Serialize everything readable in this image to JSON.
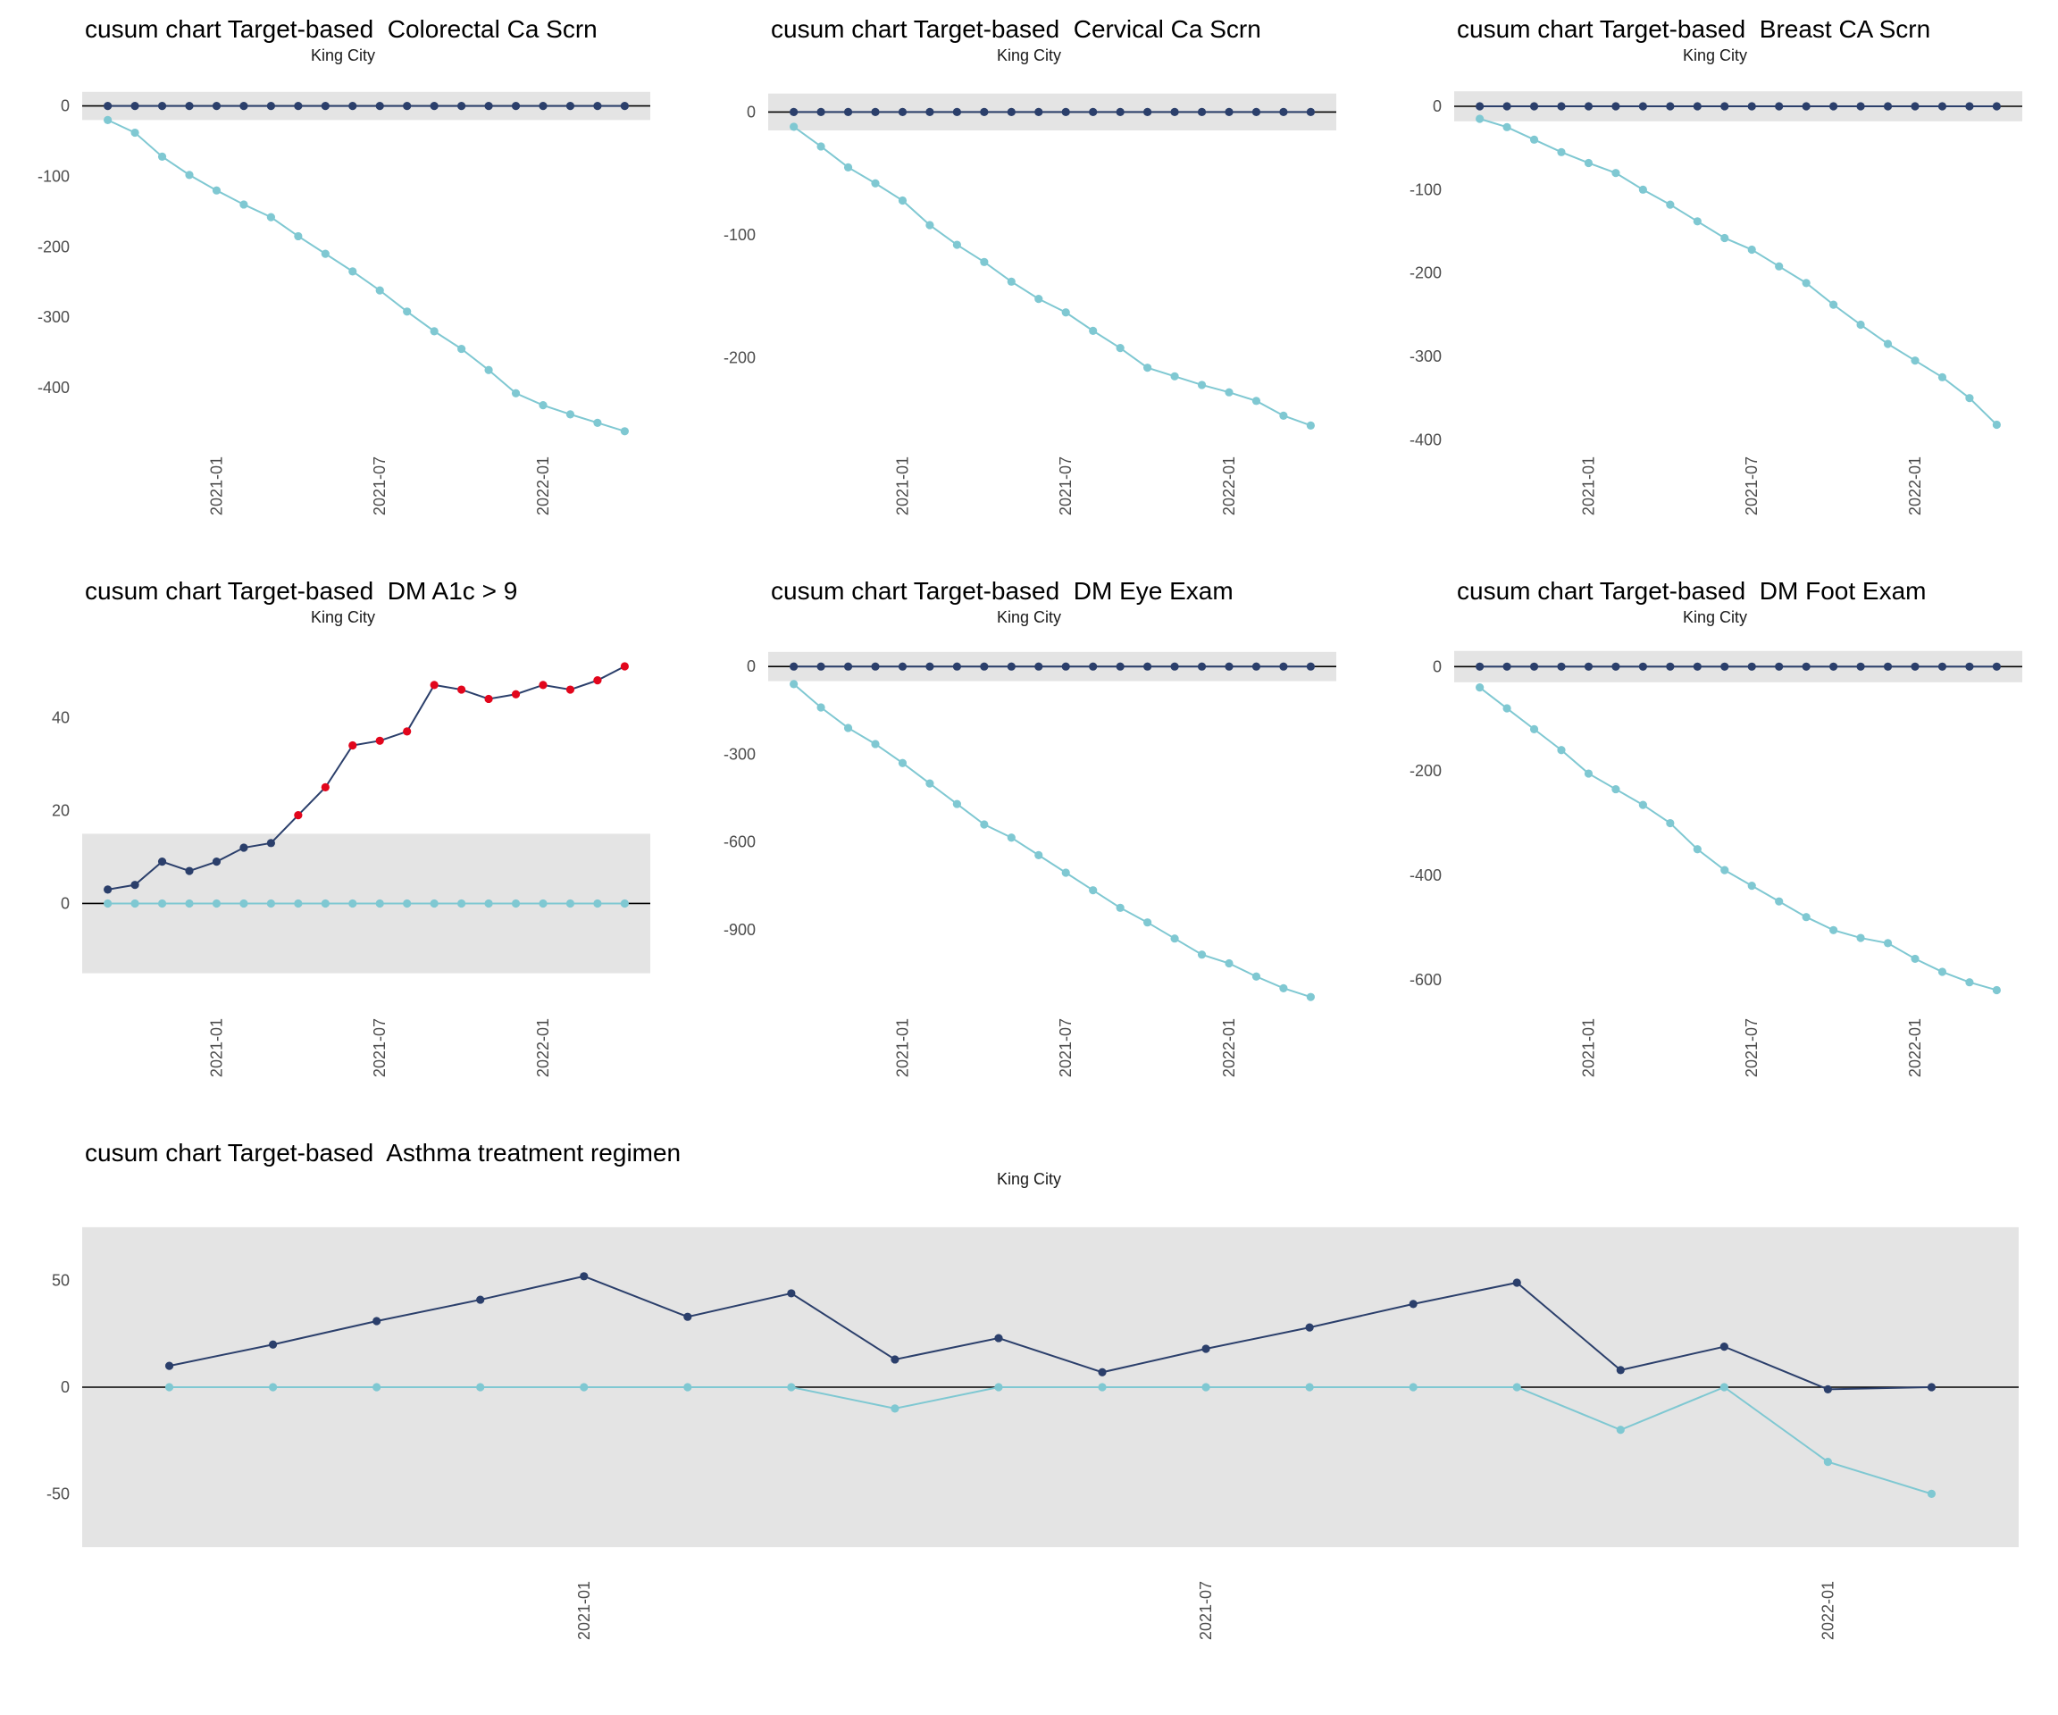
{
  "colors": {
    "upper_series": "#2b3f6b",
    "lower_series": "#7fc8d2",
    "alert": "#e2061c",
    "band": "#e4e4e4",
    "baseline": "#000000",
    "tick_label": "#4d4d4d"
  },
  "chart_data": [
    {
      "type": "line",
      "title": "cusum chart Target-based  Colorectal Ca Scrn",
      "subtitle": "King City",
      "ylim": [
        -480,
        35
      ],
      "y_ticks": [
        0,
        -100,
        -200,
        -300,
        -400
      ],
      "band": [
        -20,
        20
      ],
      "x_ticks": [
        {
          "i": 4,
          "label": "2021-01"
        },
        {
          "i": 10,
          "label": "2021-07"
        },
        {
          "i": 16,
          "label": "2022-01"
        }
      ],
      "series": [
        {
          "name": "cusum-upper",
          "color": "#2b3f6b",
          "values": [
            0,
            0,
            0,
            0,
            0,
            0,
            0,
            0,
            0,
            0,
            0,
            0,
            0,
            0,
            0,
            0,
            0,
            0,
            0,
            0
          ]
        },
        {
          "name": "cusum-lower",
          "color": "#7fc8d2",
          "values": [
            -20,
            -38,
            -72,
            -98,
            -120,
            -140,
            -158,
            -185,
            -210,
            -235,
            -262,
            -292,
            -320,
            -345,
            -375,
            -408,
            -425,
            -438,
            -450,
            -462
          ]
        }
      ]
    },
    {
      "type": "line",
      "title": "cusum chart Target-based  Cervical Ca Scrn",
      "subtitle": "King City",
      "ylim": [
        -270,
        25
      ],
      "y_ticks": [
        0,
        -100,
        -200
      ],
      "band": [
        -15,
        15
      ],
      "x_ticks": [
        {
          "i": 4,
          "label": "2021-01"
        },
        {
          "i": 10,
          "label": "2021-07"
        },
        {
          "i": 16,
          "label": "2022-01"
        }
      ],
      "series": [
        {
          "name": "cusum-upper",
          "color": "#2b3f6b",
          "values": [
            0,
            0,
            0,
            0,
            0,
            0,
            0,
            0,
            0,
            0,
            0,
            0,
            0,
            0,
            0,
            0,
            0,
            0,
            0,
            0
          ]
        },
        {
          "name": "cusum-lower",
          "color": "#7fc8d2",
          "values": [
            -12,
            -28,
            -45,
            -58,
            -72,
            -92,
            -108,
            -122,
            -138,
            -152,
            -163,
            -178,
            -192,
            -208,
            -215,
            -222,
            -228,
            -235,
            -247,
            -255
          ]
        }
      ]
    },
    {
      "type": "line",
      "title": "cusum chart Target-based  Breast CA Scrn",
      "subtitle": "King City",
      "ylim": [
        -405,
        30
      ],
      "y_ticks": [
        0,
        -100,
        -200,
        -300,
        -400
      ],
      "band": [
        -18,
        18
      ],
      "x_ticks": [
        {
          "i": 4,
          "label": "2021-01"
        },
        {
          "i": 10,
          "label": "2021-07"
        },
        {
          "i": 16,
          "label": "2022-01"
        }
      ],
      "series": [
        {
          "name": "cusum-upper",
          "color": "#2b3f6b",
          "values": [
            0,
            0,
            0,
            0,
            0,
            0,
            0,
            0,
            0,
            0,
            0,
            0,
            0,
            0,
            0,
            0,
            0,
            0,
            0,
            0
          ]
        },
        {
          "name": "cusum-lower",
          "color": "#7fc8d2",
          "values": [
            -15,
            -25,
            -40,
            -55,
            -68,
            -80,
            -100,
            -118,
            -138,
            -158,
            -172,
            -192,
            -212,
            -238,
            -262,
            -285,
            -305,
            -325,
            -350,
            -382
          ]
        }
      ]
    },
    {
      "type": "line",
      "title": "cusum chart Target-based  DM A1c > 9",
      "subtitle": "King City",
      "ylim": [
        -22,
        56
      ],
      "y_ticks": [
        0,
        20,
        40
      ],
      "band": [
        -15,
        15
      ],
      "x_ticks": [
        {
          "i": 4,
          "label": "2021-01"
        },
        {
          "i": 10,
          "label": "2021-07"
        },
        {
          "i": 16,
          "label": "2022-01"
        }
      ],
      "series": [
        {
          "name": "cusum-upper",
          "color": "#2b3f6b",
          "red_above": 15,
          "values": [
            3,
            4,
            9,
            7,
            9,
            12,
            13,
            19,
            25,
            34,
            35,
            37,
            47,
            46,
            44,
            45,
            47,
            46,
            48,
            51
          ]
        },
        {
          "name": "cusum-lower",
          "color": "#7fc8d2",
          "values": [
            0,
            0,
            0,
            0,
            0,
            0,
            0,
            0,
            0,
            0,
            0,
            0,
            0,
            0,
            0,
            0,
            0,
            0,
            0,
            0
          ]
        }
      ]
    },
    {
      "type": "line",
      "title": "cusum chart Target-based  DM Eye Exam",
      "subtitle": "King City",
      "ylim": [
        -1160,
        80
      ],
      "y_ticks": [
        0,
        -300,
        -600,
        -900
      ],
      "band": [
        -50,
        50
      ],
      "x_ticks": [
        {
          "i": 4,
          "label": "2021-01"
        },
        {
          "i": 10,
          "label": "2021-07"
        },
        {
          "i": 16,
          "label": "2022-01"
        }
      ],
      "series": [
        {
          "name": "cusum-upper",
          "color": "#2b3f6b",
          "values": [
            0,
            0,
            0,
            0,
            0,
            0,
            0,
            0,
            0,
            0,
            0,
            0,
            0,
            0,
            0,
            0,
            0,
            0,
            0,
            0
          ]
        },
        {
          "name": "cusum-lower",
          "color": "#7fc8d2",
          "values": [
            -60,
            -140,
            -210,
            -265,
            -330,
            -400,
            -470,
            -540,
            -585,
            -645,
            -705,
            -765,
            -825,
            -875,
            -930,
            -985,
            -1015,
            -1060,
            -1100,
            -1130
          ]
        }
      ]
    },
    {
      "type": "line",
      "title": "cusum chart Target-based  DM Foot Exam",
      "subtitle": "King City",
      "ylim": [
        -650,
        45
      ],
      "y_ticks": [
        0,
        -200,
        -400,
        -600
      ],
      "band": [
        -30,
        30
      ],
      "x_ticks": [
        {
          "i": 4,
          "label": "2021-01"
        },
        {
          "i": 10,
          "label": "2021-07"
        },
        {
          "i": 16,
          "label": "2022-01"
        }
      ],
      "series": [
        {
          "name": "cusum-upper",
          "color": "#2b3f6b",
          "values": [
            0,
            0,
            0,
            0,
            0,
            0,
            0,
            0,
            0,
            0,
            0,
            0,
            0,
            0,
            0,
            0,
            0,
            0,
            0,
            0
          ]
        },
        {
          "name": "cusum-lower",
          "color": "#7fc8d2",
          "values": [
            -40,
            -80,
            -120,
            -160,
            -205,
            -235,
            -265,
            -300,
            -350,
            -390,
            -420,
            -450,
            -480,
            -505,
            -520,
            -530,
            -560,
            -585,
            -605,
            -620
          ]
        }
      ]
    },
    {
      "type": "line",
      "title": "cusum chart Target-based  Asthma treatment regimen",
      "subtitle": "King City",
      "ylim": [
        -85,
        85
      ],
      "y_ticks": [
        -50,
        0,
        50
      ],
      "band": [
        -75,
        75
      ],
      "x_ticks": [
        {
          "i": 4,
          "label": "2021-01"
        },
        {
          "i": 10,
          "label": "2021-07"
        },
        {
          "i": 16,
          "label": "2022-01"
        }
      ],
      "series": [
        {
          "name": "cusum-upper",
          "color": "#2b3f6b",
          "values": [
            10,
            20,
            31,
            41,
            52,
            33,
            44,
            13,
            23,
            7,
            18,
            28,
            39,
            49,
            8,
            19,
            -1,
            0
          ]
        },
        {
          "name": "cusum-lower",
          "color": "#7fc8d2",
          "values": [
            0,
            0,
            0,
            0,
            0,
            0,
            0,
            -10,
            0,
            0,
            0,
            0,
            0,
            0,
            -20,
            0,
            -35,
            -50
          ]
        }
      ]
    }
  ]
}
